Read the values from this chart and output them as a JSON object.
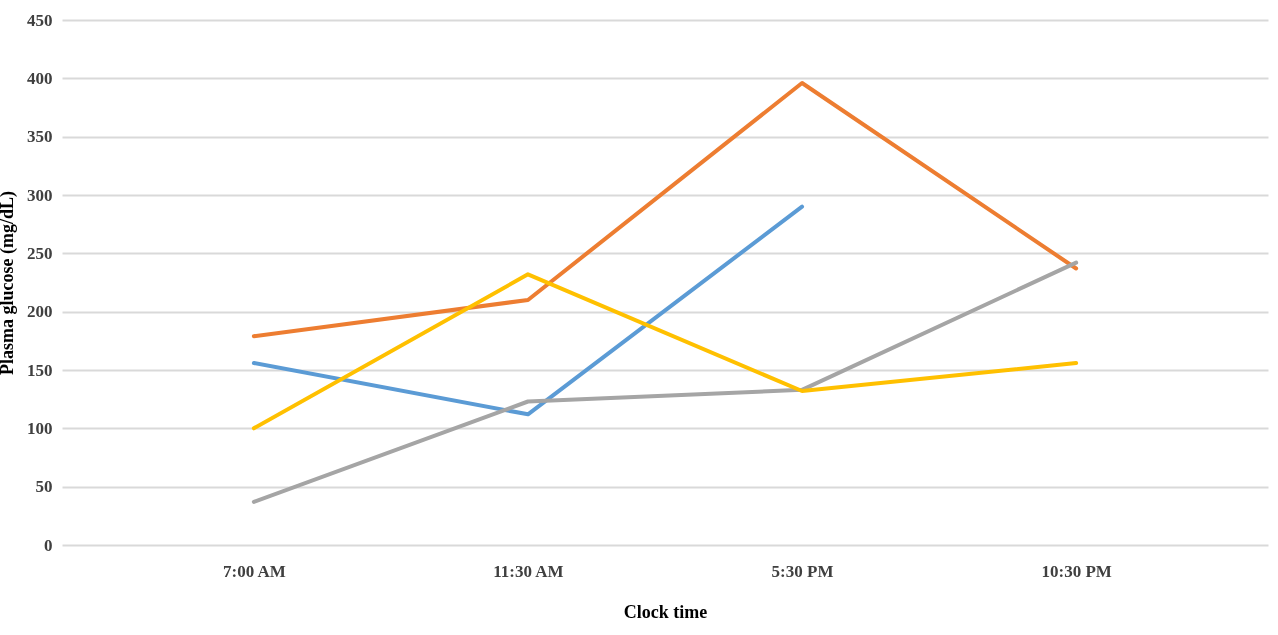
{
  "chart_data": {
    "type": "line",
    "xlabel": "Clock time",
    "ylabel": "Plasma glucose (mg/dL)",
    "categories": [
      "7:00 AM",
      "11:30 AM",
      "5:30 PM",
      "10:30 PM"
    ],
    "series": [
      {
        "color": "#5b9bd5",
        "values": [
          156,
          112,
          290,
          null
        ]
      },
      {
        "color": "#ed7d31",
        "values": [
          179,
          210,
          396,
          237
        ]
      },
      {
        "color": "#a5a5a5",
        "values": [
          37,
          123,
          133,
          242
        ]
      },
      {
        "color": "#ffc000",
        "values": [
          100,
          232,
          132,
          156
        ]
      }
    ],
    "ylim": [
      0,
      450
    ],
    "yticks": [
      0,
      50,
      100,
      150,
      200,
      250,
      300,
      350,
      400,
      450
    ],
    "grid": "y",
    "marker": "none",
    "line_style": "solid"
  }
}
